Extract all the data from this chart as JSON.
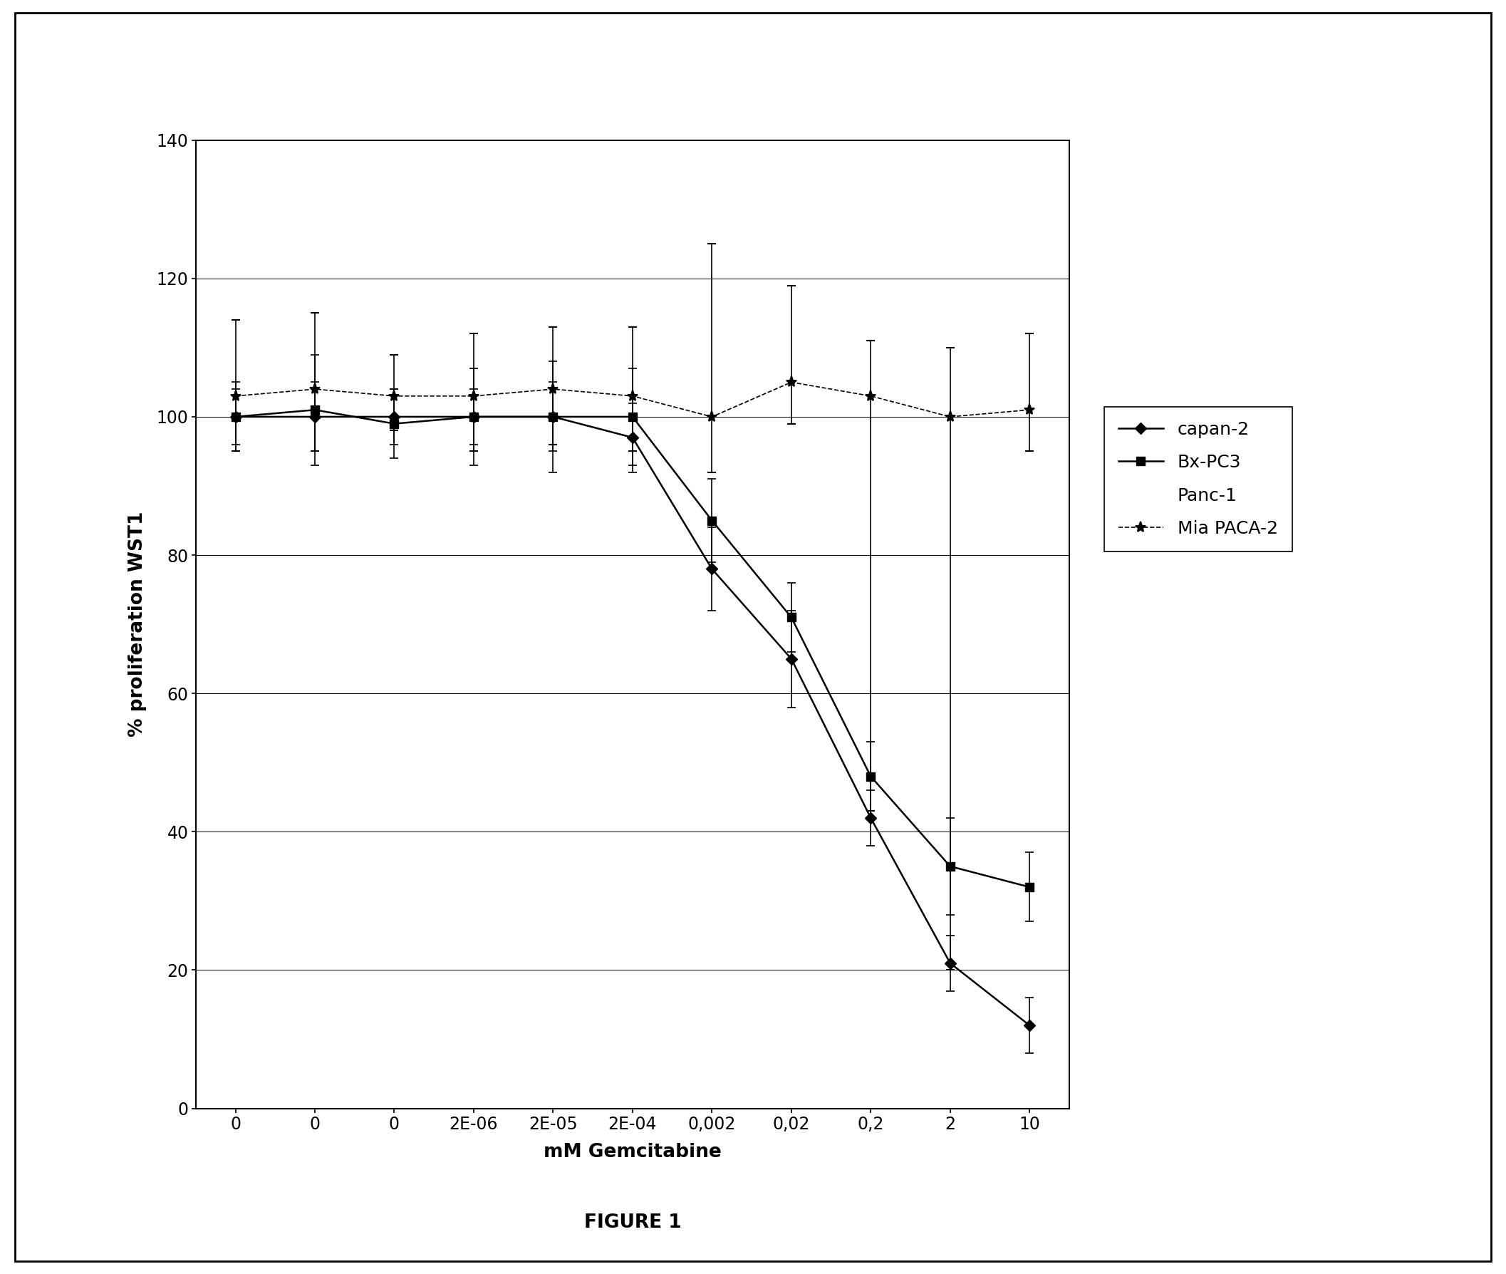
{
  "x_labels": [
    "0",
    "0",
    "0",
    "2E-06",
    "2E-05",
    "2E-04",
    "0,002",
    "0,02",
    "0,2",
    "2",
    "10"
  ],
  "x_positions": [
    0,
    1,
    2,
    3,
    4,
    5,
    6,
    7,
    8,
    9,
    10
  ],
  "capan2_y": [
    100,
    100,
    100,
    100,
    100,
    97,
    78,
    65,
    42,
    21,
    12
  ],
  "capan2_err": [
    4,
    5,
    4,
    4,
    5,
    5,
    6,
    7,
    4,
    4,
    4
  ],
  "bxpc3_y": [
    100,
    101,
    99,
    100,
    100,
    100,
    85,
    71,
    48,
    35,
    32
  ],
  "bxpc3_err": [
    5,
    8,
    5,
    7,
    8,
    7,
    6,
    5,
    5,
    7,
    5
  ],
  "mia_y": [
    103,
    104,
    103,
    103,
    104,
    103,
    100,
    105,
    103,
    100,
    101
  ],
  "mia_err_upper": [
    11,
    11,
    6,
    9,
    9,
    10,
    25,
    14,
    8,
    10,
    11
  ],
  "mia_err_lower": [
    8,
    9,
    5,
    8,
    8,
    8,
    8,
    6,
    60,
    80,
    6
  ],
  "xlabel": "mM Gemcitabine",
  "ylabel": "% proliferation WST1",
  "ylim": [
    0,
    140
  ],
  "yticks": [
    0,
    20,
    40,
    60,
    80,
    100,
    120,
    140
  ],
  "figure_label": "FIGURE 1",
  "line_color": "#000000"
}
